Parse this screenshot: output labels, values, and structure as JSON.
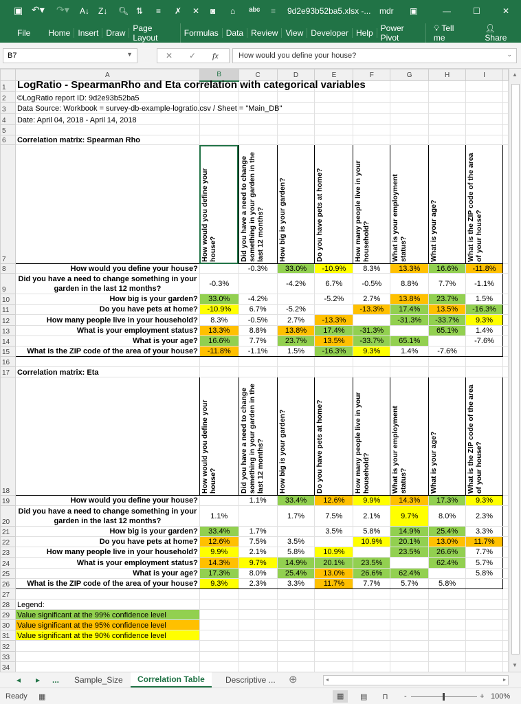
{
  "app": {
    "filename": "9d2e93b52ba5.xlsx  -...",
    "user": "mdr",
    "qat_icons": [
      "save-icon",
      "undo-icon",
      "redo-icon",
      "sort-asc-icon",
      "sort-desc-icon",
      "print-preview-icon",
      "filter-icon",
      "indent-icon",
      "spelling-icon",
      "clear-icon",
      "camera-icon",
      "org-chart-icon",
      "strikethrough-icon",
      "customize-icon"
    ],
    "window_icons": {
      "ribbon_options": "▣",
      "minimize": "—",
      "maximize": "☐",
      "close": "✕"
    }
  },
  "ribbon": {
    "tabs": [
      "File",
      "Home",
      "Insert",
      "Draw",
      "Page Layout",
      "Formulas",
      "Data",
      "Review",
      "View",
      "Developer",
      "Help",
      "Power Pivot"
    ],
    "tell_me": "Tell me",
    "share": "Share"
  },
  "formula_bar": {
    "name_box": "B7",
    "fx": "fx",
    "cancel": "✕",
    "enter": "✓",
    "content": "How would you define your house?"
  },
  "columns": [
    "A",
    "B",
    "C",
    "D",
    "E",
    "F",
    "G",
    "H",
    "I"
  ],
  "selected_cell": "B7",
  "colors": {
    "g": "#92d050",
    "o": "#ffc000",
    "y": "#ffff00"
  },
  "sheet": {
    "title": "LogRatio - SpearmanRho and Eta correlation with categorical variables",
    "report_id": "©LogRatio report ID: 9d2e93b52ba5",
    "data_source": "Data Source: Workbook = survey-db-example-logratio.csv / Sheet = \"Main_DB\"",
    "date": "Date: April 04, 2018 - April 14, 2018",
    "variables": [
      "How would you define your house?",
      "Did you have a need to change something in your garden in the last 12 months?",
      "How big is your garden?",
      "Do you have pets at home?",
      "How many people live in your household?",
      "What is your employment status?",
      "What is your age?",
      "What is the ZIP code of the area of your house?"
    ],
    "spearman": {
      "heading": "Correlation matrix: Spearman Rho",
      "values": [
        [
          "",
          "-0.3%",
          "33.0%",
          "-10.9%",
          "8.3%",
          "13.3%",
          "16.6%",
          "-11.8%"
        ],
        [
          "-0.3%",
          "",
          "-4.2%",
          "6.7%",
          "-0.5%",
          "8.8%",
          "7.7%",
          "-1.1%"
        ],
        [
          "33.0%",
          "-4.2%",
          "",
          "-5.2%",
          "2.7%",
          "13.8%",
          "23.7%",
          "1.5%"
        ],
        [
          "-10.9%",
          "6.7%",
          "-5.2%",
          "",
          "-13.3%",
          "17.4%",
          "13.5%",
          "-16.3%"
        ],
        [
          "8.3%",
          "-0.5%",
          "2.7%",
          "-13.3%",
          "",
          "-31.3%",
          "-33.7%",
          "9.3%"
        ],
        [
          "13.3%",
          "8.8%",
          "13.8%",
          "17.4%",
          "-31.3%",
          "",
          "65.1%",
          "1.4%"
        ],
        [
          "16.6%",
          "7.7%",
          "23.7%",
          "13.5%",
          "-33.7%",
          "65.1%",
          "",
          "-7.6%"
        ],
        [
          "-11.8%",
          "-1.1%",
          "1.5%",
          "-16.3%",
          "9.3%",
          "1.4%",
          "-7.6%",
          ""
        ]
      ],
      "significance": [
        [
          "",
          "",
          "g",
          "y",
          "",
          "o",
          "g",
          "o"
        ],
        [
          "",
          "",
          "",
          "",
          "",
          "",
          "",
          ""
        ],
        [
          "g",
          "",
          "",
          "",
          "",
          "o",
          "g",
          ""
        ],
        [
          "y",
          "",
          "",
          "",
          "o",
          "g",
          "o",
          "g"
        ],
        [
          "",
          "",
          "",
          "o",
          "",
          "g",
          "g",
          "y"
        ],
        [
          "o",
          "",
          "o",
          "g",
          "g",
          "",
          "g",
          ""
        ],
        [
          "g",
          "",
          "g",
          "o",
          "g",
          "g",
          "",
          ""
        ],
        [
          "o",
          "",
          "",
          "g",
          "y",
          "",
          "",
          ""
        ]
      ]
    },
    "eta": {
      "heading": "Correlation matrix: Eta",
      "values": [
        [
          "",
          "1.1%",
          "33.4%",
          "12.6%",
          "9.9%",
          "14.3%",
          "17.3%",
          "9.3%"
        ],
        [
          "1.1%",
          "",
          "1.7%",
          "7.5%",
          "2.1%",
          "9.7%",
          "8.0%",
          "2.3%"
        ],
        [
          "33.4%",
          "1.7%",
          "",
          "3.5%",
          "5.8%",
          "14.9%",
          "25.4%",
          "3.3%"
        ],
        [
          "12.6%",
          "7.5%",
          "3.5%",
          "",
          "10.9%",
          "20.1%",
          "13.0%",
          "11.7%"
        ],
        [
          "9.9%",
          "2.1%",
          "5.8%",
          "10.9%",
          "",
          "23.5%",
          "26.6%",
          "7.7%"
        ],
        [
          "14.3%",
          "9.7%",
          "14.9%",
          "20.1%",
          "23.5%",
          "",
          "62.4%",
          "5.7%"
        ],
        [
          "17.3%",
          "8.0%",
          "25.4%",
          "13.0%",
          "26.6%",
          "62.4%",
          "",
          "5.8%"
        ],
        [
          "9.3%",
          "2.3%",
          "3.3%",
          "11.7%",
          "7.7%",
          "5.7%",
          "5.8%",
          ""
        ]
      ],
      "significance": [
        [
          "",
          "",
          "g",
          "o",
          "y",
          "o",
          "g",
          "y"
        ],
        [
          "",
          "",
          "",
          "",
          "",
          "y",
          "",
          ""
        ],
        [
          "g",
          "",
          "",
          "",
          "",
          "g",
          "g",
          ""
        ],
        [
          "o",
          "",
          "",
          "",
          "y",
          "g",
          "o",
          "o"
        ],
        [
          "y",
          "",
          "",
          "y",
          "",
          "g",
          "g",
          ""
        ],
        [
          "o",
          "y",
          "g",
          "g",
          "g",
          "",
          "g",
          ""
        ],
        [
          "g",
          "",
          "g",
          "o",
          "g",
          "g",
          "",
          ""
        ],
        [
          "y",
          "",
          "",
          "o",
          "",
          "",
          "",
          ""
        ]
      ]
    },
    "legend": {
      "heading": "Legend:",
      "items": [
        {
          "label": "Value significant at the 99% confidence level",
          "level": "g"
        },
        {
          "label": "Value significant at the 95% confidence level",
          "level": "o"
        },
        {
          "label": "Value significant at the 90% confidence level",
          "level": "y"
        }
      ]
    }
  },
  "sheet_tabs": {
    "nav_prev": "◂",
    "nav_next": "▸",
    "more": "...",
    "tabs": [
      "Sample_Size",
      "Correlation Table",
      "Descriptive ..."
    ],
    "active": "Correlation Table",
    "add": "⊕"
  },
  "status": {
    "ready": "Ready",
    "zoom": "100%",
    "zoom_minus": "-",
    "zoom_plus": "+"
  }
}
